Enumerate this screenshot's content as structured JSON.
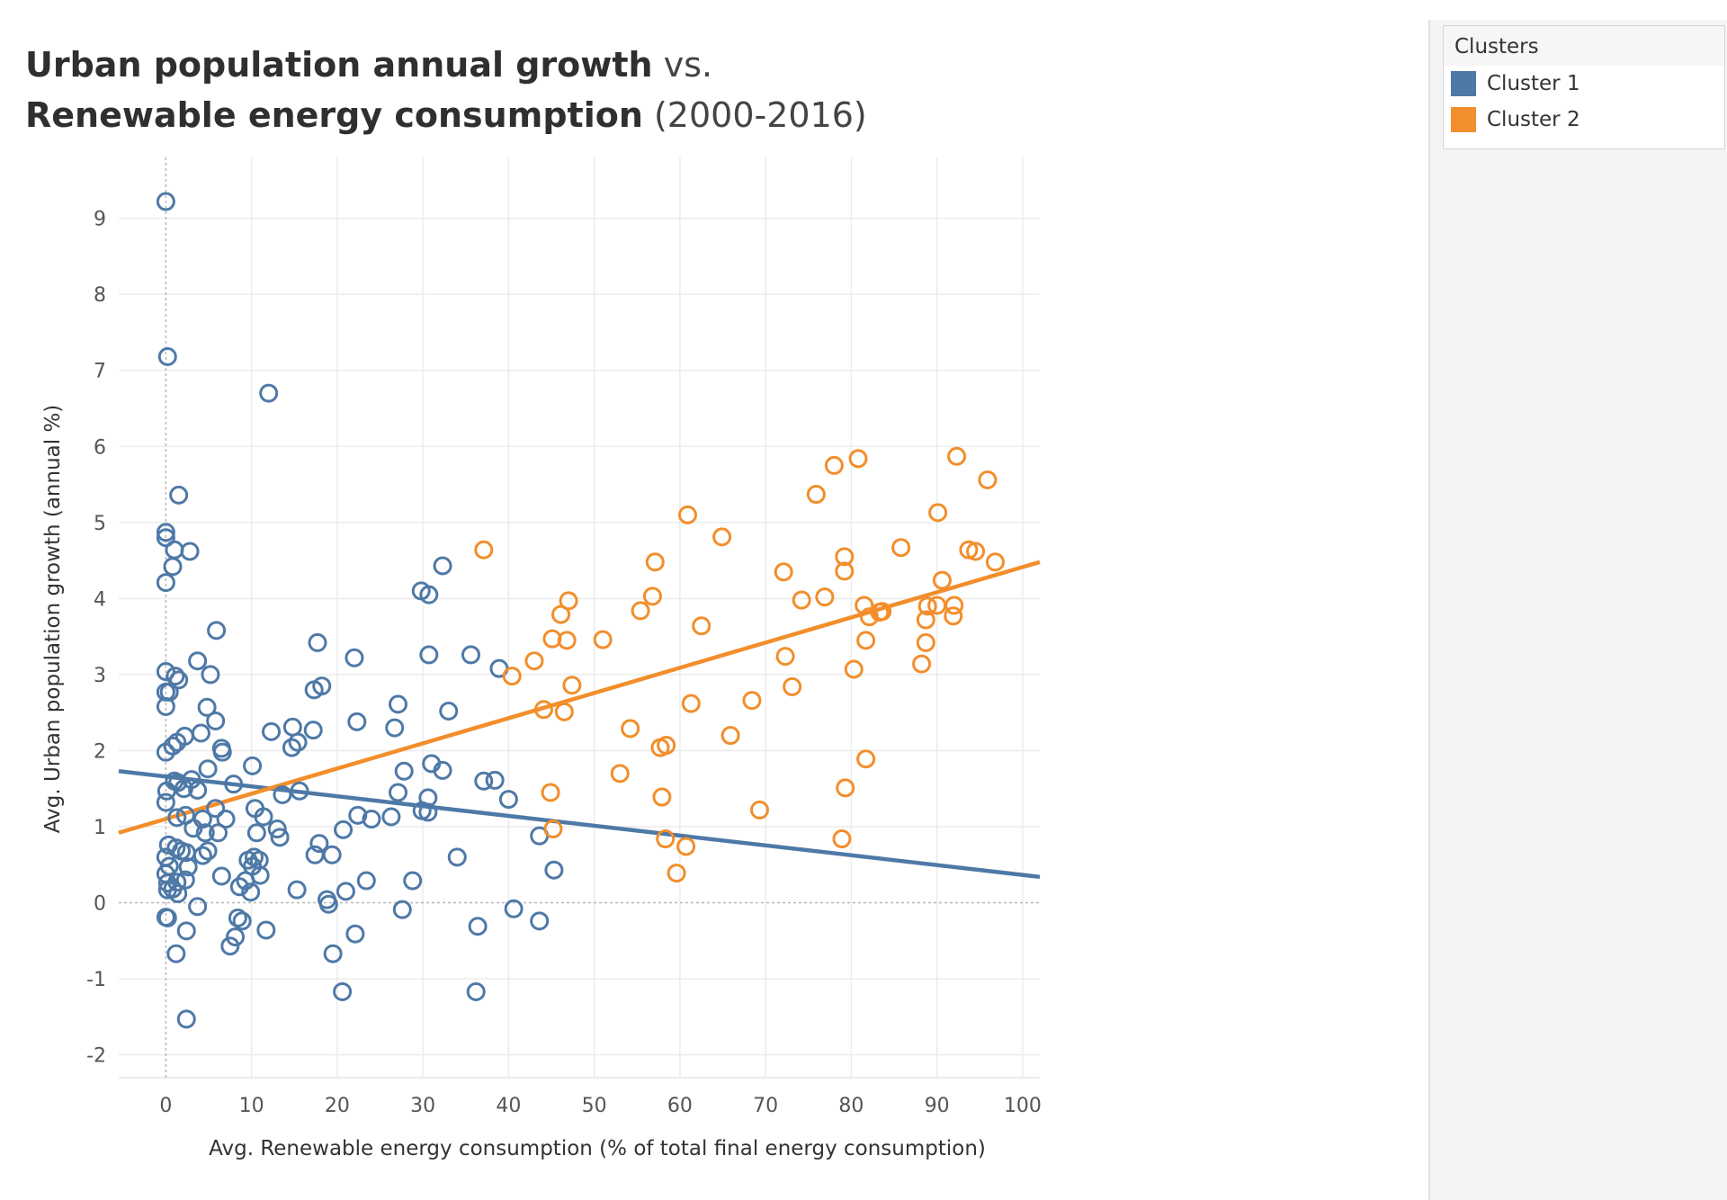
{
  "title": {
    "line1_bold": "Urban population annual growth",
    "line1_light": "vs.",
    "line2_bold": "Renewable energy consumption",
    "line2_light": "(2000-2016)"
  },
  "legend": {
    "title": "Clusters",
    "items": [
      {
        "label": "Cluster 1",
        "color": "#4e79a7"
      },
      {
        "label": "Cluster 2",
        "color": "#f28e2b"
      }
    ]
  },
  "chart_data": {
    "type": "scatter",
    "xlabel": "Avg. Renewable energy consumption (% of total final energy consumption)",
    "ylabel": "Avg. Urban population growth (annual %)",
    "xlim": [
      -5.5,
      102
    ],
    "ylim": [
      -2.3,
      9.8
    ],
    "xticks": [
      0,
      10,
      20,
      30,
      40,
      50,
      60,
      70,
      80,
      90,
      100
    ],
    "yticks": [
      -2,
      -1,
      0,
      1,
      2,
      3,
      4,
      5,
      6,
      7,
      8,
      9
    ],
    "grid": true,
    "legend_position": "top-right",
    "series": [
      {
        "name": "Cluster 1",
        "color": "#4e79a7",
        "trend": [
          [
            -5.5,
            1.73
          ],
          [
            102,
            0.34
          ]
        ],
        "points": [
          [
            0,
            9.22
          ],
          [
            0.2,
            7.18
          ],
          [
            12,
            6.7
          ],
          [
            1.5,
            5.36
          ],
          [
            0,
            4.87
          ],
          [
            0,
            4.8
          ],
          [
            1,
            4.64
          ],
          [
            2.8,
            4.62
          ],
          [
            0.8,
            4.42
          ],
          [
            0,
            4.21
          ],
          [
            5.9,
            3.58
          ],
          [
            3.7,
            3.18
          ],
          [
            5.2,
            3.0
          ],
          [
            0,
            3.04
          ],
          [
            1.1,
            2.98
          ],
          [
            1.5,
            2.93
          ],
          [
            0,
            2.77
          ],
          [
            0.4,
            2.77
          ],
          [
            0,
            2.58
          ],
          [
            4.8,
            2.57
          ],
          [
            2.2,
            2.19
          ],
          [
            4.1,
            2.23
          ],
          [
            5.8,
            2.39
          ],
          [
            1.3,
            2.11
          ],
          [
            0.8,
            2.06
          ],
          [
            0,
            1.98
          ],
          [
            6.5,
            2.03
          ],
          [
            6.6,
            1.98
          ],
          [
            4.9,
            1.76
          ],
          [
            10.1,
            1.8
          ],
          [
            1,
            1.6
          ],
          [
            1.4,
            1.58
          ],
          [
            3,
            1.62
          ],
          [
            2.1,
            1.5
          ],
          [
            0.1,
            1.47
          ],
          [
            3.7,
            1.48
          ],
          [
            7.9,
            1.56
          ],
          [
            0,
            1.32
          ],
          [
            1.3,
            1.12
          ],
          [
            2.3,
            1.15
          ],
          [
            3.2,
            0.98
          ],
          [
            4.3,
            1.1
          ],
          [
            5.8,
            1.24
          ],
          [
            7,
            1.1
          ],
          [
            10.4,
            1.24
          ],
          [
            11.4,
            1.13
          ],
          [
            4.6,
            0.92
          ],
          [
            6.1,
            0.92
          ],
          [
            10.6,
            0.92
          ],
          [
            13,
            0.97
          ],
          [
            13.3,
            0.86
          ],
          [
            0.3,
            0.76
          ],
          [
            1.2,
            0.72
          ],
          [
            1.8,
            0.68
          ],
          [
            2.4,
            0.66
          ],
          [
            4.3,
            0.62
          ],
          [
            4.9,
            0.68
          ],
          [
            0,
            0.6
          ],
          [
            0.4,
            0.48
          ],
          [
            2.6,
            0.47
          ],
          [
            9.6,
            0.56
          ],
          [
            10.3,
            0.6
          ],
          [
            10.9,
            0.56
          ],
          [
            10.1,
            0.48
          ],
          [
            0,
            0.38
          ],
          [
            0.2,
            0.26
          ],
          [
            1.3,
            0.27
          ],
          [
            2.3,
            0.3
          ],
          [
            6.5,
            0.35
          ],
          [
            9.3,
            0.29
          ],
          [
            11,
            0.36
          ],
          [
            0.2,
            0.17
          ],
          [
            0.8,
            0.18
          ],
          [
            1.4,
            0.12
          ],
          [
            8.6,
            0.21
          ],
          [
            9.9,
            0.14
          ],
          [
            3.7,
            -0.05
          ],
          [
            0,
            -0.19
          ],
          [
            0.2,
            -0.2
          ],
          [
            8.4,
            -0.2
          ],
          [
            8.9,
            -0.24
          ],
          [
            2.4,
            -0.37
          ],
          [
            11.7,
            -0.36
          ],
          [
            8.1,
            -0.45
          ],
          [
            7.5,
            -0.57
          ],
          [
            1.2,
            -0.67
          ],
          [
            2.4,
            -1.53
          ],
          [
            13.6,
            1.42
          ],
          [
            14.8,
            2.31
          ],
          [
            14.7,
            2.04
          ],
          [
            15.4,
            2.11
          ],
          [
            12.3,
            2.25
          ],
          [
            15.6,
            1.47
          ],
          [
            17.2,
            2.27
          ],
          [
            17.3,
            2.8
          ],
          [
            18.2,
            2.85
          ],
          [
            17.7,
            3.42
          ],
          [
            22,
            3.22
          ],
          [
            22.3,
            2.38
          ],
          [
            26.7,
            2.3
          ],
          [
            27.1,
            2.61
          ],
          [
            27.8,
            1.73
          ],
          [
            27.1,
            1.45
          ],
          [
            22.4,
            1.15
          ],
          [
            24,
            1.1
          ],
          [
            26.3,
            1.13
          ],
          [
            30.6,
            1.38
          ],
          [
            30.6,
            1.19
          ],
          [
            29.9,
            1.21
          ],
          [
            31,
            1.83
          ],
          [
            32.3,
            1.74
          ],
          [
            33,
            2.52
          ],
          [
            30.7,
            3.26
          ],
          [
            29.8,
            4.1
          ],
          [
            30.7,
            4.05
          ],
          [
            32.3,
            4.43
          ],
          [
            35.6,
            3.26
          ],
          [
            38.9,
            3.08
          ],
          [
            37.1,
            1.6
          ],
          [
            38.4,
            1.61
          ],
          [
            40,
            1.36
          ],
          [
            34,
            0.6
          ],
          [
            43.6,
            0.88
          ],
          [
            45.3,
            0.43
          ],
          [
            17.9,
            0.78
          ],
          [
            17.4,
            0.63
          ],
          [
            19.4,
            0.63
          ],
          [
            20.7,
            0.96
          ],
          [
            15.3,
            0.17
          ],
          [
            18.8,
            0.04
          ],
          [
            19,
            -0.02
          ],
          [
            21,
            0.15
          ],
          [
            23.4,
            0.29
          ],
          [
            28.8,
            0.29
          ],
          [
            27.6,
            -0.09
          ],
          [
            40.6,
            -0.08
          ],
          [
            43.6,
            -0.24
          ],
          [
            22.1,
            -0.41
          ],
          [
            36.4,
            -0.31
          ],
          [
            19.5,
            -0.67
          ],
          [
            20.6,
            -1.17
          ],
          [
            36.2,
            -1.17
          ]
        ]
      },
      {
        "name": "Cluster 2",
        "color": "#f28e2b",
        "trend": [
          [
            -5.5,
            0.92
          ],
          [
            102,
            4.48
          ]
        ],
        "points": [
          [
            37.1,
            4.64
          ],
          [
            40.4,
            2.98
          ],
          [
            43,
            3.18
          ],
          [
            44.1,
            2.54
          ],
          [
            44.9,
            1.45
          ],
          [
            45.2,
            0.97
          ],
          [
            45.1,
            3.47
          ],
          [
            46.1,
            3.79
          ],
          [
            46.5,
            2.51
          ],
          [
            46.8,
            3.45
          ],
          [
            47,
            3.97
          ],
          [
            47.4,
            2.86
          ],
          [
            51,
            3.46
          ],
          [
            53,
            1.7
          ],
          [
            54.2,
            2.29
          ],
          [
            55.4,
            3.84
          ],
          [
            56.8,
            4.03
          ],
          [
            57.1,
            4.48
          ],
          [
            57.7,
            2.04
          ],
          [
            57.9,
            1.39
          ],
          [
            58.4,
            2.07
          ],
          [
            58.3,
            0.84
          ],
          [
            59.6,
            0.39
          ],
          [
            60.7,
            0.74
          ],
          [
            60.9,
            5.1
          ],
          [
            61.3,
            2.62
          ],
          [
            62.5,
            3.64
          ],
          [
            64.9,
            4.81
          ],
          [
            65.9,
            2.2
          ],
          [
            68.4,
            2.66
          ],
          [
            69.3,
            1.22
          ],
          [
            72.1,
            4.35
          ],
          [
            72.3,
            3.24
          ],
          [
            73.1,
            2.84
          ],
          [
            74.2,
            3.98
          ],
          [
            75.9,
            5.37
          ],
          [
            76.9,
            4.02
          ],
          [
            78,
            5.75
          ],
          [
            78.9,
            0.84
          ],
          [
            79.2,
            4.36
          ],
          [
            79.2,
            4.55
          ],
          [
            79.3,
            1.51
          ],
          [
            80.3,
            3.07
          ],
          [
            80.8,
            5.84
          ],
          [
            81.5,
            3.91
          ],
          [
            81.7,
            3.45
          ],
          [
            81.7,
            1.89
          ],
          [
            82.1,
            3.76
          ],
          [
            83.3,
            3.82
          ],
          [
            83.6,
            3.83
          ],
          [
            85.8,
            4.67
          ],
          [
            88.2,
            3.14
          ],
          [
            88.7,
            3.72
          ],
          [
            88.7,
            3.42
          ],
          [
            88.9,
            3.9
          ],
          [
            90,
            3.91
          ],
          [
            90.1,
            5.13
          ],
          [
            90.6,
            4.24
          ],
          [
            91.9,
            3.77
          ],
          [
            92,
            3.91
          ],
          [
            92.3,
            5.87
          ],
          [
            93.7,
            4.64
          ],
          [
            94.5,
            4.62
          ],
          [
            95.9,
            5.56
          ],
          [
            96.8,
            4.48
          ]
        ]
      }
    ]
  }
}
